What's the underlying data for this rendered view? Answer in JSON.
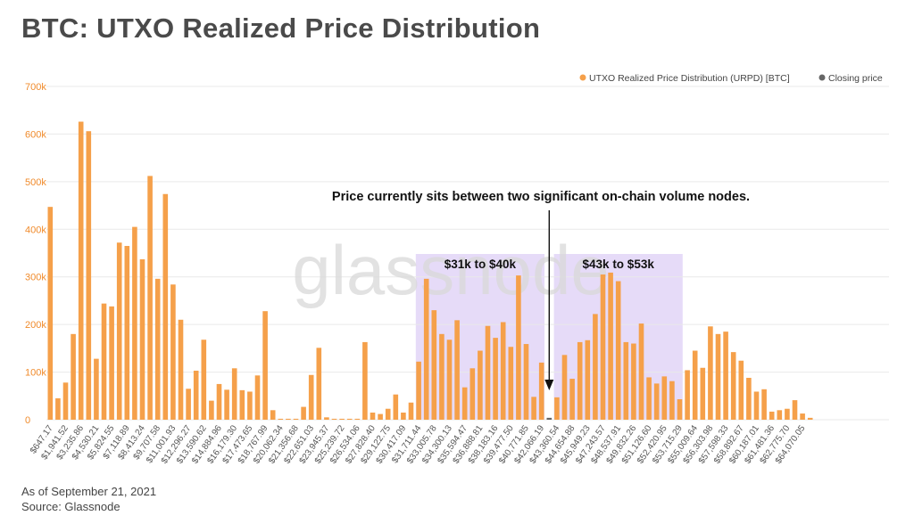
{
  "title": "BTC: UTXO Realized Price Distribution",
  "footer": {
    "date": "As of September 21, 2021",
    "source": "Source: Glassnode"
  },
  "watermark": "glassnode",
  "colors": {
    "bar": "#f5a04a",
    "closing": "#666666",
    "highlight": "#e6dbf8",
    "grid": "#e9e9e9",
    "axis_text": "#f08b2c"
  },
  "chart_data": {
    "type": "bar",
    "title": "",
    "series": [
      {
        "name": "UTXO Realized Price Distribution (URPD) [BTC]",
        "values": [
          447000,
          45000,
          78000,
          180000,
          626000,
          606000,
          128000,
          244000,
          238000,
          372000,
          365000,
          405000,
          337000,
          512000,
          296000,
          474000,
          284000,
          210000,
          65000,
          103000,
          168000,
          40000,
          75000,
          63000,
          108000,
          62000,
          59000,
          93000,
          228000,
          20000,
          2000,
          2000,
          2000,
          27000,
          94000,
          151000,
          5000,
          2000,
          2000,
          2000,
          2000,
          163000,
          15000,
          12000,
          23000,
          53000,
          15000,
          36000,
          122000,
          296000,
          230000,
          180000,
          168000,
          209000,
          68000,
          108000,
          145000,
          197000,
          172000,
          205000,
          153000,
          303000,
          159000,
          48000,
          120000,
          4000,
          47000,
          136000,
          86000,
          163000,
          167000,
          222000,
          305000,
          309000,
          291000,
          163000,
          160000,
          202000,
          89000,
          76000,
          91000,
          81000,
          43000,
          104000,
          145000,
          109000,
          196000,
          180000,
          185000,
          142000,
          124000,
          88000,
          59000,
          64000,
          17000,
          20000,
          23000,
          41000,
          13000,
          4000
        ]
      }
    ],
    "closing_price_series": {
      "name": "Closing price",
      "index": 65
    },
    "x_tick_labels": [
      "$647.17",
      "$1,941.52",
      "$3,235.86",
      "$4,530.21",
      "$5,824.55",
      "$7,118.89",
      "$8,413.24",
      "$9,707.58",
      "$11,001.93",
      "$12,296.27",
      "$13,590.62",
      "$14,884.96",
      "$16,179.30",
      "$17,473.65",
      "$18,767.99",
      "$20,062.34",
      "$21,356.68",
      "$22,651.03",
      "$23,945.37",
      "$25,239.72",
      "$26,534.06",
      "$27,828.40",
      "$29,122.75",
      "$30,417.09",
      "$31,711.44",
      "$33,005.78",
      "$34,300.13",
      "$35,594.47",
      "$36,888.81",
      "$38,183.16",
      "$39,477.50",
      "$40,771.85",
      "$42,066.19",
      "$43,360.54",
      "$44,654.88",
      "$45,949.23",
      "$47,243.57",
      "$48,537.91",
      "$49,832.26",
      "$51,126.60",
      "$52,420.95",
      "$53,715.29",
      "$55,009.64",
      "$56,303.98",
      "$57,598.33",
      "$58,892.67",
      "$60,187.01",
      "$61,481.36",
      "$62,775.70",
      "$64,070.05"
    ],
    "y_ticks": [
      "0",
      "100k",
      "200k",
      "300k",
      "400k",
      "500k",
      "600k",
      "700k"
    ],
    "ylim": [
      0,
      700000
    ],
    "grid": true,
    "legend_position": "top-right",
    "annotations": {
      "headline": "Price currently sits between two significant on-chain volume nodes.",
      "zones": [
        {
          "label": "$31k to $40k",
          "start_index": 48,
          "end_index": 64
        },
        {
          "label": "$43k to $53k",
          "start_index": 66,
          "end_index": 82
        }
      ]
    }
  }
}
